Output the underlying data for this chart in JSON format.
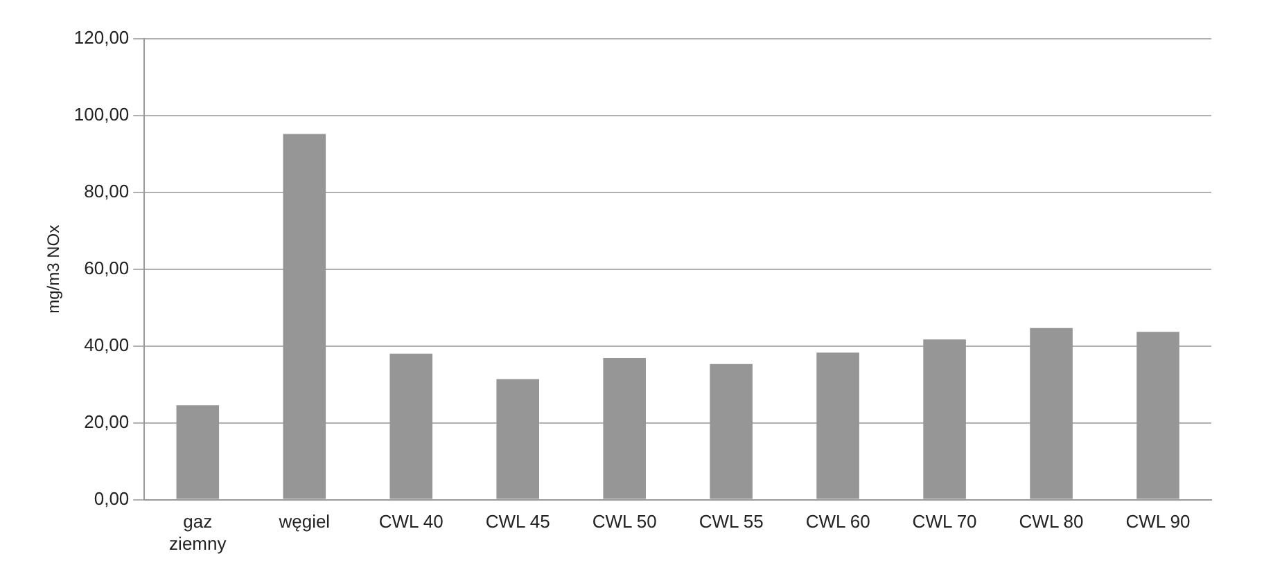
{
  "chart_data": {
    "type": "bar",
    "ylabel": "mg/m3 NOx",
    "categories": [
      "gaz ziemny",
      "węgiel",
      "CWL 40",
      "CWL 45",
      "CWL 50",
      "CWL 55",
      "CWL 60",
      "CWL 70",
      "CWL 80",
      "CWL 90"
    ],
    "values": [
      24.6,
      95.2,
      38.0,
      31.4,
      36.9,
      35.3,
      38.3,
      41.7,
      44.7,
      43.7
    ],
    "color": "#969696",
    "ylim": [
      0,
      120
    ],
    "yticks": [
      {
        "value": 0,
        "label": "0,00"
      },
      {
        "value": 20,
        "label": "20,00"
      },
      {
        "value": 40,
        "label": "40,00"
      },
      {
        "value": 60,
        "label": "60,00"
      },
      {
        "value": 80,
        "label": "80,00"
      },
      {
        "value": 100,
        "label": "100,00"
      },
      {
        "value": 120,
        "label": "120,00"
      }
    ],
    "grid": "y",
    "legend": false
  }
}
